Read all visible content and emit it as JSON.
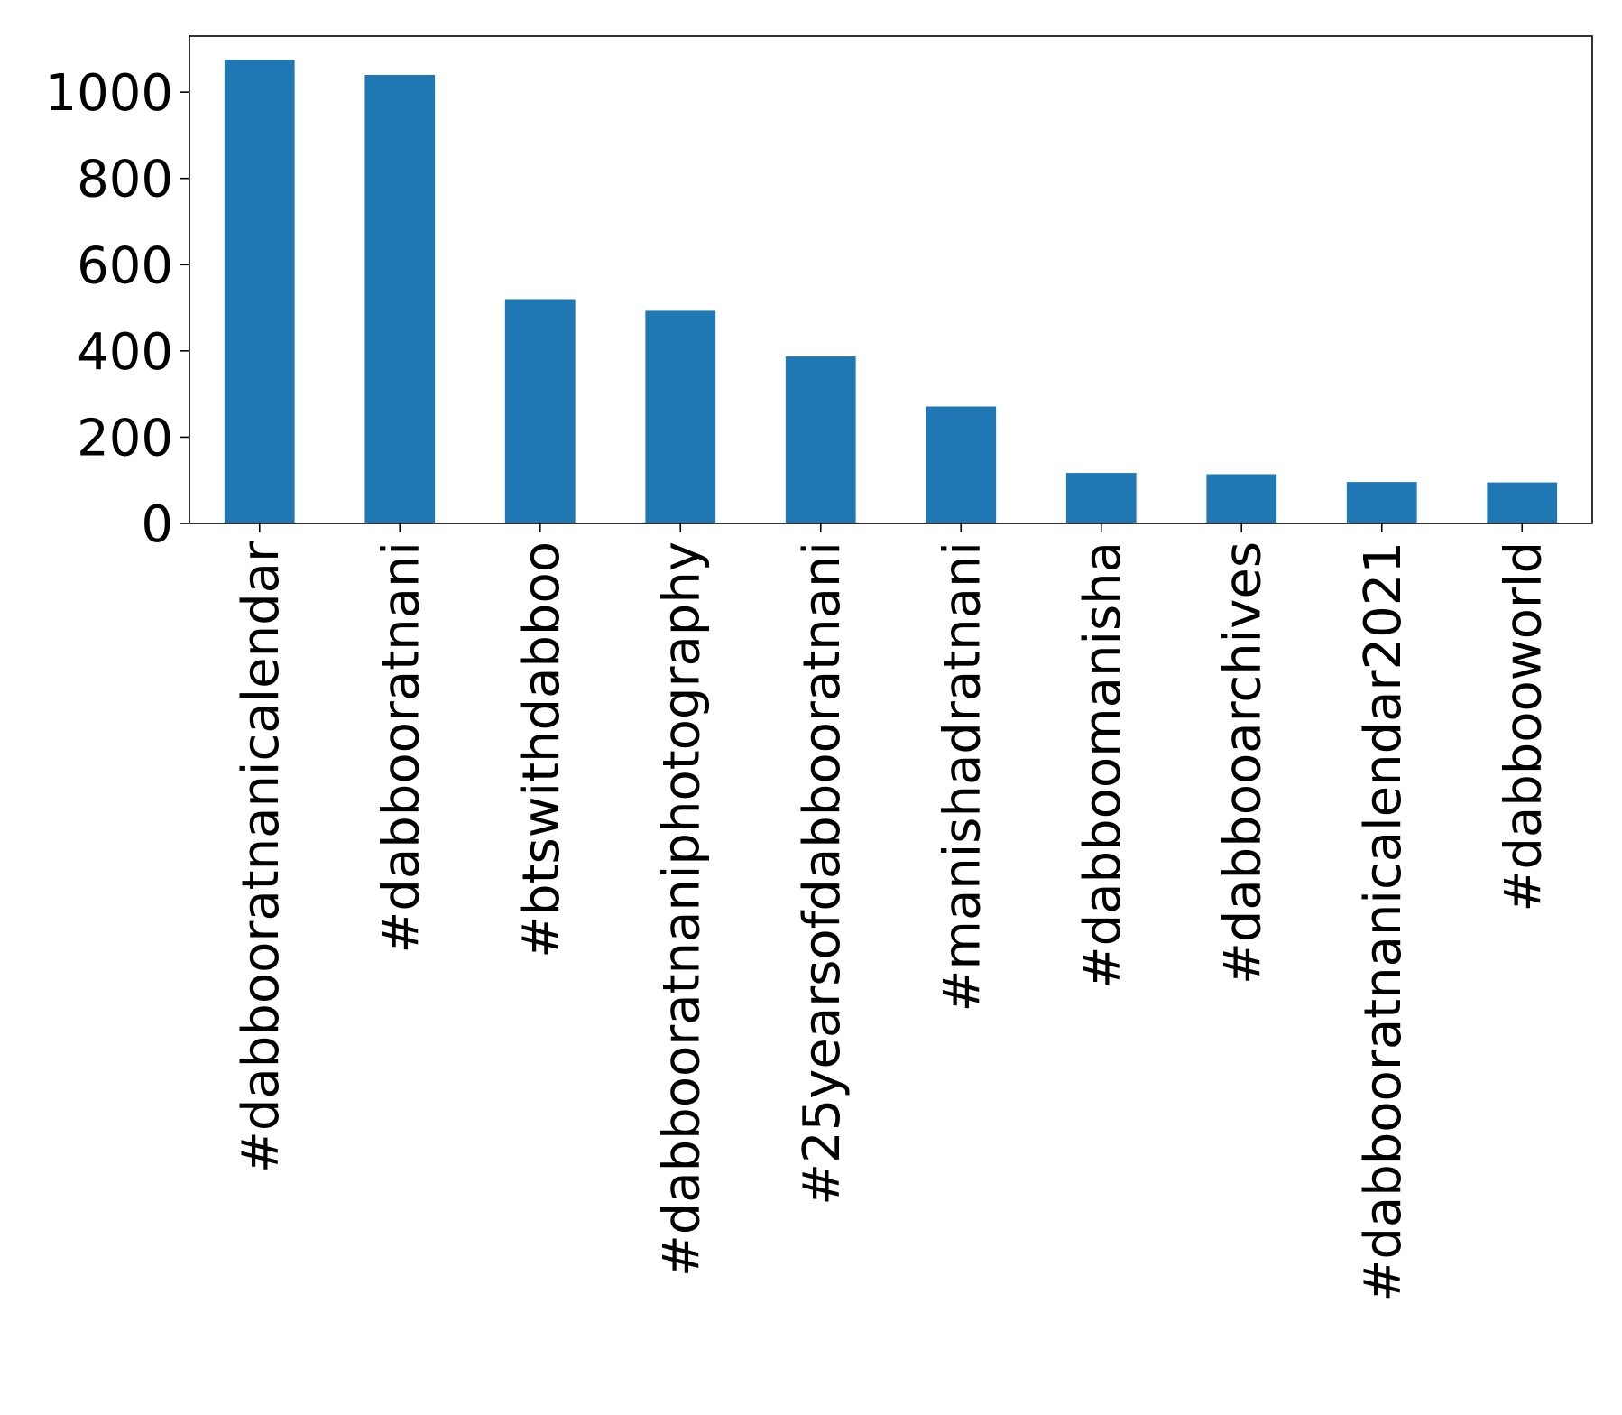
{
  "chart_data": {
    "type": "bar",
    "title": "",
    "xlabel": "",
    "ylabel": "",
    "categories": [
      "#dabbooratnanicalendar",
      "#dabbooratnani",
      "#btswithdabboo",
      "#dabbooratnaniphotography",
      "#25yearsofdabbooratnani",
      "#manishadratnani",
      "#dabboomanisha",
      "#dabbooarchives",
      "#dabbooratnanicalendar2021",
      "#dabbooworld"
    ],
    "values": [
      1075,
      1040,
      520,
      493,
      387,
      271,
      117,
      114,
      96,
      95
    ],
    "ylim": [
      0,
      1130
    ],
    "yticks": [
      0,
      200,
      400,
      600,
      800,
      1000
    ],
    "bar_color": "#1f77b4",
    "grid": false,
    "legend": "none"
  }
}
